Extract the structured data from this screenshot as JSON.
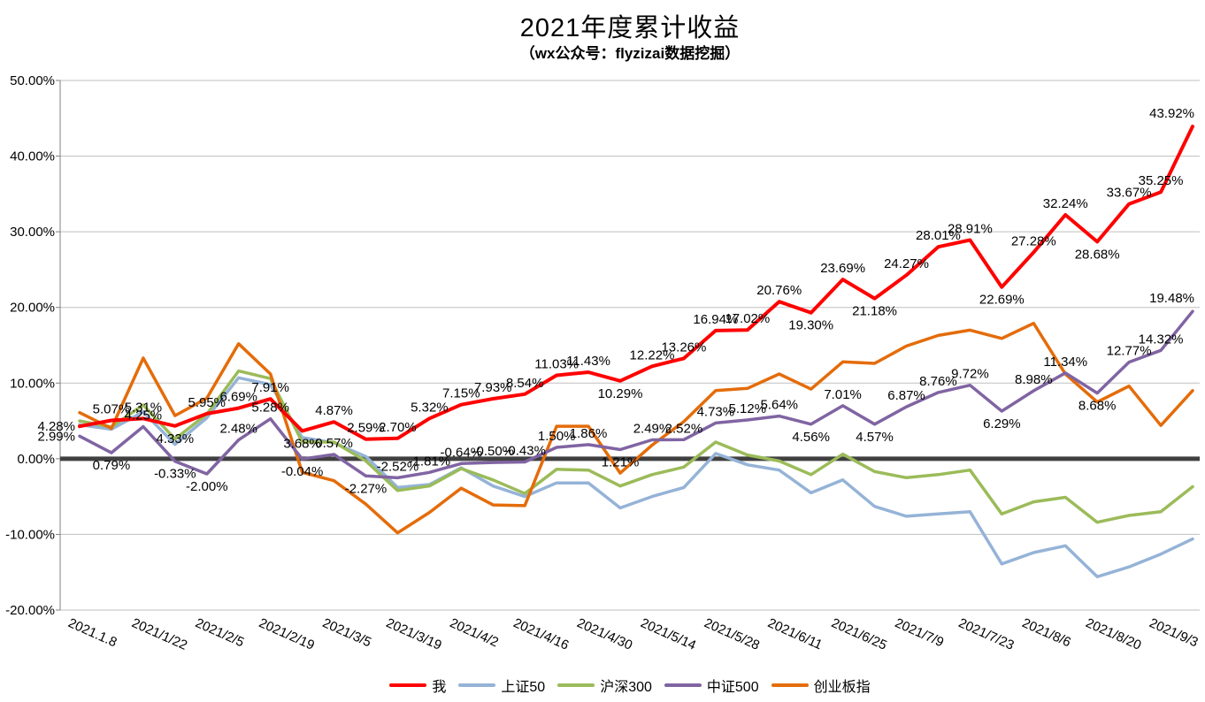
{
  "title": "2021年度累计收益",
  "subtitle": "（wx公众号：flyzizai数据挖掘）",
  "chart_data": {
    "type": "line",
    "title": "2021年度累计收益",
    "subtitle": "（wx公众号：flyzizai数据挖掘）",
    "points_count": 36,
    "x_tick_step": 2,
    "x_tick_labels": [
      "2021.1.8",
      "2021/1/22",
      "2021/2/5",
      "2021/2/19",
      "2021/3/5",
      "2021/3/19",
      "2021/4/2",
      "2021/4/16",
      "2021/4/30",
      "2021/5/14",
      "2021/5/28",
      "2021/6/11",
      "2021/6/25",
      "2021/7/9",
      "2021/7/23",
      "2021/8/6",
      "2021/8/20",
      "2021/9/3"
    ],
    "ylim": [
      -20,
      50
    ],
    "y_tick_interval": 10,
    "y_tick_labels": [
      "50.00%",
      "40.00%",
      "30.00%",
      "20.00%",
      "10.00%",
      "0.00%",
      "-10.00%",
      "-20.00%"
    ],
    "grid": "horizontal-only",
    "legend_position": "bottom-center",
    "colors": {
      "gridline": "#BFBFBF",
      "zero_axis": "#404040",
      "axis": "#808080",
      "label_text": "#000000"
    },
    "series": [
      {
        "id": "me",
        "name": "我",
        "color": "#FF0000",
        "width": 4,
        "data_labels": true,
        "values": [
          4.28,
          5.07,
          5.31,
          4.33,
          5.95,
          6.69,
          7.91,
          3.68,
          4.87,
          2.59,
          2.7,
          5.32,
          7.15,
          7.93,
          8.54,
          11.03,
          11.43,
          10.29,
          12.22,
          13.26,
          16.94,
          17.02,
          20.76,
          19.3,
          23.69,
          21.18,
          24.27,
          28.01,
          28.91,
          22.69,
          27.28,
          32.24,
          28.68,
          33.67,
          35.25,
          43.92
        ]
      },
      {
        "id": "sse50",
        "name": "上证50",
        "color": "#95B3D7",
        "width": 3.5,
        "data_labels": false,
        "values": [
          4.5,
          3.9,
          6.2,
          1.9,
          5.4,
          10.7,
          9.8,
          2.8,
          2.1,
          0.3,
          -3.8,
          -3.4,
          -1.2,
          -3.6,
          -5.0,
          -3.2,
          -3.2,
          -6.5,
          -5.0,
          -3.8,
          0.7,
          -0.8,
          -1.5,
          -4.5,
          -2.8,
          -6.3,
          -7.6,
          -7.3,
          -7.0,
          -13.9,
          -12.4,
          -11.5,
          -15.6,
          -14.3,
          -12.6,
          -10.6
        ]
      },
      {
        "id": "csi300",
        "name": "沪深300",
        "color": "#9BBB59",
        "width": 3.5,
        "data_labels": false,
        "values": [
          5.0,
          4.2,
          7.1,
          2.6,
          5.9,
          11.6,
          10.6,
          2.2,
          2.2,
          -0.3,
          -4.2,
          -3.6,
          -1.3,
          -2.8,
          -4.6,
          -1.4,
          -1.5,
          -3.6,
          -2.1,
          -1.1,
          2.2,
          0.5,
          -0.3,
          -2.1,
          0.6,
          -1.7,
          -2.5,
          -2.1,
          -1.5,
          -7.3,
          -5.7,
          -5.1,
          -8.4,
          -7.5,
          -7.0,
          -3.7
        ]
      },
      {
        "id": "csi500",
        "name": "中证500",
        "color": "#8064A2",
        "width": 3.5,
        "data_labels": true,
        "values": [
          2.99,
          0.79,
          4.25,
          -0.33,
          -2.0,
          2.48,
          5.28,
          -0.04,
          0.57,
          -2.27,
          -2.52,
          -1.81,
          -0.64,
          -0.5,
          -0.43,
          1.5,
          1.86,
          1.21,
          2.49,
          2.52,
          4.73,
          5.12,
          5.64,
          4.56,
          7.01,
          4.57,
          6.87,
          8.76,
          9.72,
          6.29,
          8.98,
          11.34,
          8.68,
          12.77,
          14.32,
          19.48
        ]
      },
      {
        "id": "chinext",
        "name": "创业板指",
        "color": "#E46C0A",
        "width": 3.5,
        "data_labels": false,
        "values": [
          6.1,
          4.0,
          13.3,
          5.7,
          8.0,
          15.2,
          11.2,
          -1.8,
          -2.9,
          -6.0,
          -9.8,
          -7.1,
          -3.9,
          -6.1,
          -6.2,
          4.3,
          4.3,
          -1.9,
          1.8,
          4.9,
          9.0,
          9.3,
          11.2,
          9.2,
          12.8,
          12.6,
          14.9,
          16.3,
          17.0,
          15.9,
          17.9,
          11.2,
          7.5,
          9.6,
          4.4,
          9.0
        ]
      }
    ]
  }
}
